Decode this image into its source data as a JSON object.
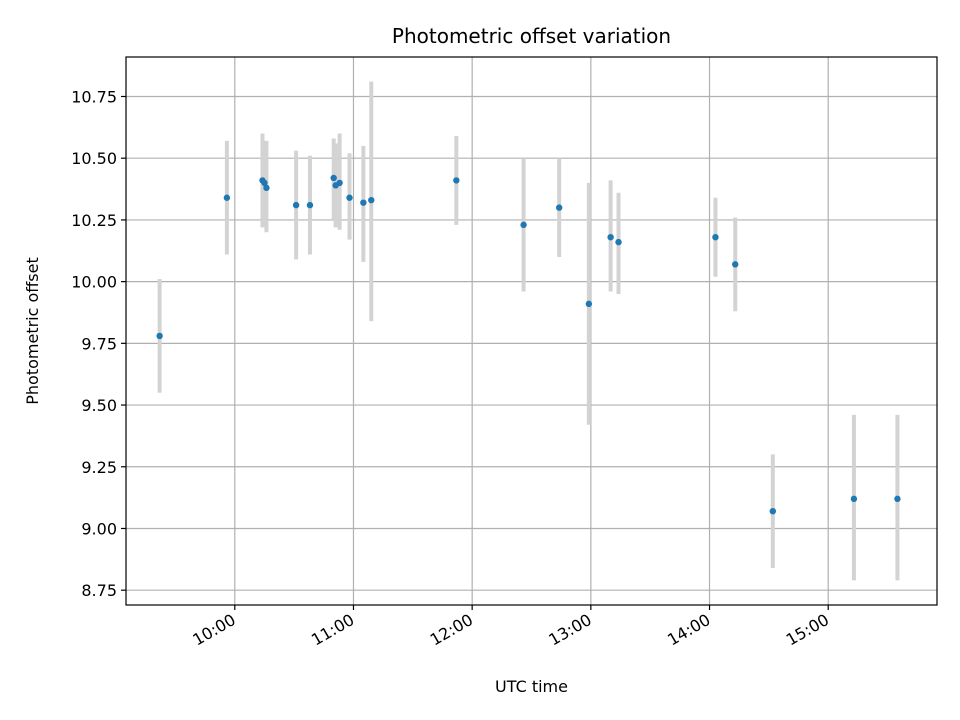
{
  "chart_data": {
    "type": "scatter",
    "title": "Photometric offset variation",
    "xlabel": "UTC time",
    "ylabel": "Photometric offset",
    "x_unit": "hours UTC",
    "xlim": [
      "09:05",
      "15:55"
    ],
    "ylim": [
      8.69,
      10.91
    ],
    "x_ticks": [
      "10:00",
      "11:00",
      "12:00",
      "13:00",
      "14:00",
      "15:00"
    ],
    "y_ticks": [
      "8.75",
      "9.00",
      "9.25",
      "9.50",
      "9.75",
      "10.00",
      "10.25",
      "10.50",
      "10.75"
    ],
    "grid": true,
    "colors": {
      "points": "#1f77b4",
      "errorbars": "#d3d3d3"
    },
    "points": [
      {
        "t": "09:22",
        "y": 9.78,
        "err_low": 9.55,
        "err_high": 10.01
      },
      {
        "t": "09:56",
        "y": 10.34,
        "err_low": 10.11,
        "err_high": 10.57
      },
      {
        "t": "10:14",
        "y": 10.41,
        "err_low": 10.22,
        "err_high": 10.6
      },
      {
        "t": "10:15",
        "y": 10.4,
        "err_low": 10.23,
        "err_high": 10.57
      },
      {
        "t": "10:16",
        "y": 10.38,
        "err_low": 10.2,
        "err_high": 10.57
      },
      {
        "t": "10:31",
        "y": 10.31,
        "err_low": 10.09,
        "err_high": 10.53
      },
      {
        "t": "10:38",
        "y": 10.31,
        "err_low": 10.11,
        "err_high": 10.51
      },
      {
        "t": "10:50",
        "y": 10.42,
        "err_low": 10.25,
        "err_high": 10.58
      },
      {
        "t": "10:51",
        "y": 10.39,
        "err_low": 10.22,
        "err_high": 10.56
      },
      {
        "t": "10:53",
        "y": 10.4,
        "err_low": 10.21,
        "err_high": 10.6
      },
      {
        "t": "10:58",
        "y": 10.34,
        "err_low": 10.17,
        "err_high": 10.52
      },
      {
        "t": "11:05",
        "y": 10.32,
        "err_low": 10.08,
        "err_high": 10.55
      },
      {
        "t": "11:09",
        "y": 10.33,
        "err_low": 9.84,
        "err_high": 10.81
      },
      {
        "t": "11:52",
        "y": 10.41,
        "err_low": 10.23,
        "err_high": 10.59
      },
      {
        "t": "12:26",
        "y": 10.23,
        "err_low": 9.96,
        "err_high": 10.5
      },
      {
        "t": "12:44",
        "y": 10.3,
        "err_low": 10.1,
        "err_high": 10.5
      },
      {
        "t": "12:59",
        "y": 9.91,
        "err_low": 9.42,
        "err_high": 10.4
      },
      {
        "t": "13:10",
        "y": 10.18,
        "err_low": 9.96,
        "err_high": 10.41
      },
      {
        "t": "13:14",
        "y": 10.16,
        "err_low": 9.95,
        "err_high": 10.36
      },
      {
        "t": "14:03",
        "y": 10.18,
        "err_low": 10.02,
        "err_high": 10.34
      },
      {
        "t": "14:13",
        "y": 10.07,
        "err_low": 9.88,
        "err_high": 10.26
      },
      {
        "t": "14:32",
        "y": 9.07,
        "err_low": 8.84,
        "err_high": 9.3
      },
      {
        "t": "15:13",
        "y": 9.12,
        "err_low": 8.79,
        "err_high": 9.46
      },
      {
        "t": "15:35",
        "y": 9.12,
        "err_low": 8.79,
        "err_high": 9.46
      }
    ]
  }
}
